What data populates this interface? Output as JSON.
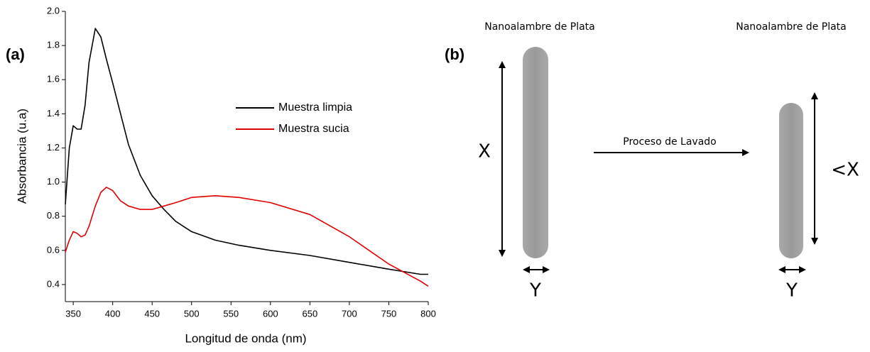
{
  "chart_data": {
    "type": "line",
    "panel_label": "(a)",
    "x_label": "Longitud de onda (nm)",
    "y_label": "Absorbancia (u.a)",
    "x": [
      340,
      345,
      350,
      355,
      360,
      365,
      370,
      378,
      385,
      392,
      400,
      410,
      420,
      435,
      450,
      465,
      480,
      500,
      530,
      560,
      600,
      650,
      700,
      750,
      790,
      800
    ],
    "series": [
      {
        "name": "Muestra limpia",
        "color": "#000000",
        "values": [
          0.87,
          1.2,
          1.33,
          1.31,
          1.31,
          1.45,
          1.7,
          1.9,
          1.85,
          1.72,
          1.58,
          1.4,
          1.22,
          1.04,
          0.92,
          0.84,
          0.77,
          0.71,
          0.66,
          0.63,
          0.6,
          0.57,
          0.53,
          0.49,
          0.46,
          0.46
        ]
      },
      {
        "name": "Muestra sucia",
        "color": "#e00000",
        "values": [
          0.59,
          0.66,
          0.71,
          0.7,
          0.68,
          0.69,
          0.74,
          0.86,
          0.94,
          0.97,
          0.95,
          0.89,
          0.86,
          0.84,
          0.84,
          0.86,
          0.88,
          0.91,
          0.92,
          0.91,
          0.88,
          0.81,
          0.68,
          0.52,
          0.42,
          0.39
        ]
      }
    ],
    "xlim": [
      340,
      800
    ],
    "xticks": [
      350,
      400,
      450,
      500,
      550,
      600,
      650,
      700,
      750,
      800
    ],
    "ylim": [
      0.3,
      2.0
    ],
    "yticks": [
      0.4,
      0.6,
      0.8,
      {
        "value": 1,
        "label": "1.0"
      },
      1.2,
      1.4,
      1.6,
      1.8,
      {
        "value": 2,
        "label": "2.0"
      }
    ]
  },
  "diagram": {
    "panel_label": "(b)",
    "left": {
      "title": "Nanoalambre de Plata",
      "length_label": "X",
      "width_label": "Y"
    },
    "arrow_label": "Proceso de Lavado",
    "right": {
      "title": "Nanoalambre de Plata",
      "length_label": "<X",
      "width_label": "Y"
    }
  }
}
